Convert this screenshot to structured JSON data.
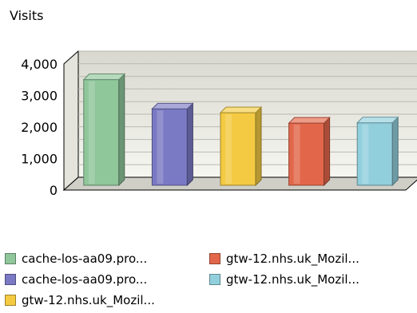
{
  "chart_data": {
    "type": "bar",
    "title": "Visits",
    "xlabel": "",
    "ylabel": "",
    "ylim": [
      0,
      4000
    ],
    "yticks": [
      "0",
      "1,000",
      "2,000",
      "3,000",
      "4,000"
    ],
    "grid": true,
    "legend_position": "bottom",
    "categories": [
      "cache-los-aa09.pro...",
      "cache-los-aa09.pro...",
      "gtw-12.nhs.uk_Mozil...",
      "gtw-12.nhs.uk_Mozil...",
      "gtw-12.nhs.uk_Mozil..."
    ],
    "values": [
      3350,
      2420,
      2300,
      1970,
      1980
    ],
    "colors": [
      "#8fc69a",
      "#7a79c4",
      "#f3ca42",
      "#e2674a",
      "#92cfdc"
    ]
  }
}
